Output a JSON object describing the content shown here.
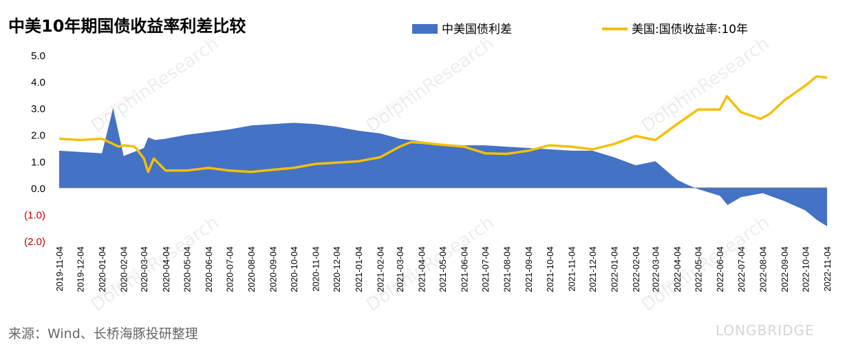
{
  "title": "中美10年期国债收益率利差比较",
  "source": "来源：Wind、长桥海豚投研整理",
  "watermark": {
    "brand": "LONGBRIDGE",
    "text": "DolphinResearch",
    "small": "LONGBRIDGE"
  },
  "colors": {
    "spread_bar": "#4472C4",
    "us_line": "#F5BF0A",
    "negative_tick": "#C00000",
    "axis": "#808080"
  },
  "chart_data": {
    "type": "bar",
    "y_range": [
      -2.0,
      5.0
    ],
    "y_ticks": [
      "5.0",
      "4.0",
      "3.0",
      "2.0",
      "1.0",
      "0.0",
      "(1.0)",
      "(2.0)"
    ],
    "y_tick_values": [
      5,
      4,
      3,
      2,
      1,
      0,
      -1,
      -2
    ],
    "x_labels": [
      "2019-11-04",
      "2019-12-04",
      "2020-01-04",
      "2020-02-04",
      "2020-03-04",
      "2020-04-04",
      "2020-05-04",
      "2020-06-04",
      "2020-07-04",
      "2020-08-04",
      "2020-09-04",
      "2020-10-04",
      "2020-11-04",
      "2020-12-04",
      "2021-01-04",
      "2021-02-04",
      "2021-03-04",
      "2021-04-04",
      "2021-05-04",
      "2021-06-04",
      "2021-07-04",
      "2021-08-04",
      "2021-09-04",
      "2021-10-04",
      "2021-11-04",
      "2021-12-04",
      "2022-01-04",
      "2022-02-04",
      "2022-03-04",
      "2022-04-04",
      "2022-05-04",
      "2022-06-04",
      "2022-07-04",
      "2022-08-04",
      "2022-09-04",
      "2022-10-04",
      "2022-11-04"
    ],
    "series": [
      {
        "name": "中美国债利差",
        "kind": "area",
        "x": [
          "2019-11-04",
          "2019-12-04",
          "2020-01-04",
          "2020-01-20",
          "2020-02-04",
          "2020-03-04",
          "2020-03-10",
          "2020-03-20",
          "2020-04-04",
          "2020-05-04",
          "2020-06-04",
          "2020-07-04",
          "2020-08-04",
          "2020-09-04",
          "2020-10-04",
          "2020-11-04",
          "2020-12-04",
          "2021-01-04",
          "2021-02-04",
          "2021-03-04",
          "2021-04-04",
          "2021-05-04",
          "2021-06-04",
          "2021-07-04",
          "2021-08-04",
          "2021-09-04",
          "2021-10-04",
          "2021-11-04",
          "2021-12-04",
          "2022-01-04",
          "2022-02-04",
          "2022-03-04",
          "2022-04-04",
          "2022-04-20",
          "2022-05-04",
          "2022-06-04",
          "2022-06-15",
          "2022-07-04",
          "2022-08-04",
          "2022-09-04",
          "2022-10-04",
          "2022-10-20",
          "2022-11-04"
        ],
        "values": [
          1.4,
          1.35,
          1.3,
          3.0,
          1.2,
          1.5,
          1.9,
          1.8,
          1.85,
          2.0,
          2.1,
          2.2,
          2.35,
          2.4,
          2.45,
          2.4,
          2.3,
          2.15,
          2.05,
          1.85,
          1.75,
          1.65,
          1.6,
          1.6,
          1.55,
          1.5,
          1.45,
          1.4,
          1.4,
          1.15,
          0.85,
          1.0,
          0.3,
          0.1,
          -0.05,
          -0.3,
          -0.65,
          -0.35,
          -0.2,
          -0.5,
          -0.85,
          -1.2,
          -1.45
        ]
      },
      {
        "name": "美国:国债收益率:10年",
        "kind": "line",
        "x": [
          "2019-11-04",
          "2019-12-04",
          "2020-01-04",
          "2020-01-28",
          "2020-02-04",
          "2020-02-20",
          "2020-03-04",
          "2020-03-10",
          "2020-03-18",
          "2020-04-04",
          "2020-05-04",
          "2020-06-04",
          "2020-07-04",
          "2020-08-04",
          "2020-09-04",
          "2020-10-04",
          "2020-11-04",
          "2020-12-04",
          "2021-01-04",
          "2021-02-04",
          "2021-03-04",
          "2021-03-20",
          "2021-04-04",
          "2021-05-04",
          "2021-06-04",
          "2021-07-04",
          "2021-08-04",
          "2021-09-04",
          "2021-10-04",
          "2021-11-04",
          "2021-12-04",
          "2022-01-04",
          "2022-02-04",
          "2022-03-04",
          "2022-04-04",
          "2022-05-04",
          "2022-06-04",
          "2022-06-14",
          "2022-07-04",
          "2022-08-01",
          "2022-08-15",
          "2022-09-04",
          "2022-10-04",
          "2022-10-20",
          "2022-11-04"
        ],
        "values": [
          1.85,
          1.8,
          1.85,
          1.55,
          1.6,
          1.55,
          1.1,
          0.6,
          1.1,
          0.65,
          0.65,
          0.75,
          0.65,
          0.6,
          0.68,
          0.75,
          0.9,
          0.95,
          1.0,
          1.15,
          1.55,
          1.72,
          1.7,
          1.62,
          1.55,
          1.3,
          1.28,
          1.4,
          1.6,
          1.55,
          1.45,
          1.65,
          1.95,
          1.8,
          2.4,
          2.95,
          2.95,
          3.45,
          2.85,
          2.6,
          2.8,
          3.3,
          3.85,
          4.2,
          4.15
        ]
      }
    ],
    "legend_position": "top",
    "grid": false
  }
}
